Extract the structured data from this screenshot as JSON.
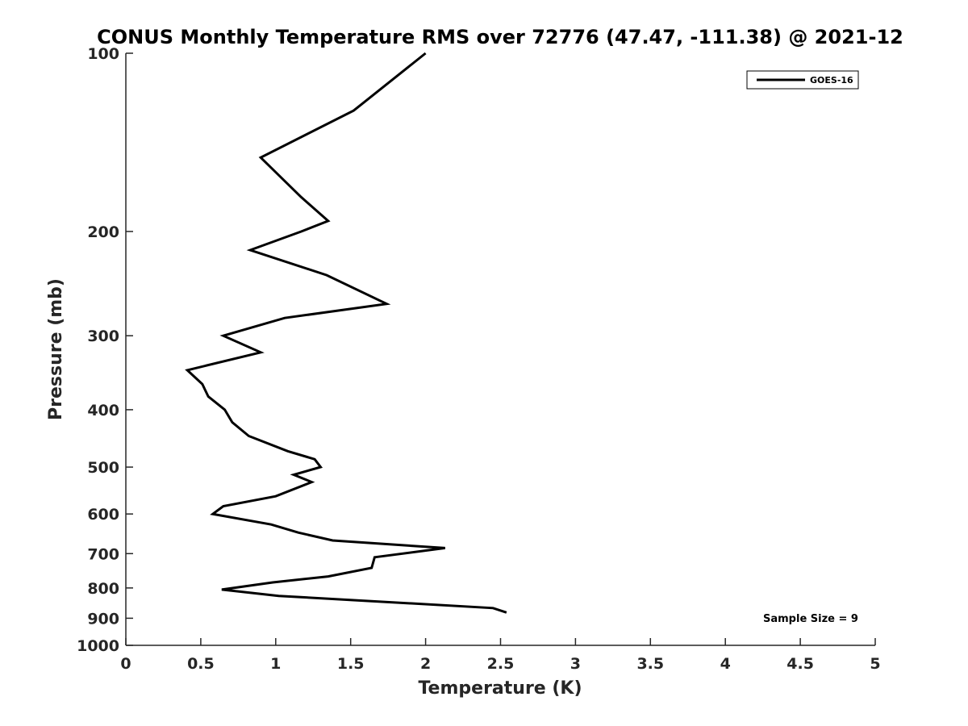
{
  "chart_data": {
    "type": "line",
    "title": "CONUS Monthly Temperature RMS over 72776 (47.47, -111.38) @ 2021-12",
    "xlabel": "Temperature (K)",
    "ylabel": "Pressure (mb)",
    "xlim": [
      0,
      5
    ],
    "ylim": [
      100,
      1000
    ],
    "y_scale": "log",
    "y_reversed": true,
    "grid": false,
    "legend_position": "top-right",
    "x_ticks": [
      "0",
      "0.5",
      "1",
      "1.5",
      "2",
      "2.5",
      "3",
      "3.5",
      "4",
      "4.5",
      "5"
    ],
    "y_ticks": [
      "100",
      "200",
      "300",
      "400",
      "500",
      "600",
      "700",
      "800",
      "900",
      "1000"
    ],
    "annotation": "Sample Size = 9",
    "series": [
      {
        "name": "GOES-16",
        "color": "#000000",
        "points": [
          {
            "x": 2.0,
            "y": 100
          },
          {
            "x": 1.52,
            "y": 125
          },
          {
            "x": 0.9,
            "y": 150
          },
          {
            "x": 1.17,
            "y": 175
          },
          {
            "x": 1.35,
            "y": 192
          },
          {
            "x": 1.17,
            "y": 200
          },
          {
            "x": 0.83,
            "y": 215
          },
          {
            "x": 1.34,
            "y": 237
          },
          {
            "x": 1.74,
            "y": 265
          },
          {
            "x": 1.06,
            "y": 280
          },
          {
            "x": 0.65,
            "y": 300
          },
          {
            "x": 0.9,
            "y": 320
          },
          {
            "x": 0.41,
            "y": 343
          },
          {
            "x": 0.51,
            "y": 362
          },
          {
            "x": 0.55,
            "y": 380
          },
          {
            "x": 0.66,
            "y": 400
          },
          {
            "x": 0.71,
            "y": 420
          },
          {
            "x": 0.82,
            "y": 443
          },
          {
            "x": 1.08,
            "y": 470
          },
          {
            "x": 1.26,
            "y": 485
          },
          {
            "x": 1.3,
            "y": 500
          },
          {
            "x": 1.12,
            "y": 515
          },
          {
            "x": 1.24,
            "y": 530
          },
          {
            "x": 1.0,
            "y": 560
          },
          {
            "x": 0.65,
            "y": 582
          },
          {
            "x": 0.58,
            "y": 600
          },
          {
            "x": 0.97,
            "y": 625
          },
          {
            "x": 1.15,
            "y": 645
          },
          {
            "x": 1.38,
            "y": 665
          },
          {
            "x": 2.13,
            "y": 685
          },
          {
            "x": 1.66,
            "y": 710
          },
          {
            "x": 1.64,
            "y": 740
          },
          {
            "x": 1.35,
            "y": 765
          },
          {
            "x": 0.98,
            "y": 783
          },
          {
            "x": 0.64,
            "y": 805
          },
          {
            "x": 1.02,
            "y": 825
          },
          {
            "x": 2.45,
            "y": 865
          },
          {
            "x": 2.54,
            "y": 880
          }
        ]
      }
    ]
  }
}
